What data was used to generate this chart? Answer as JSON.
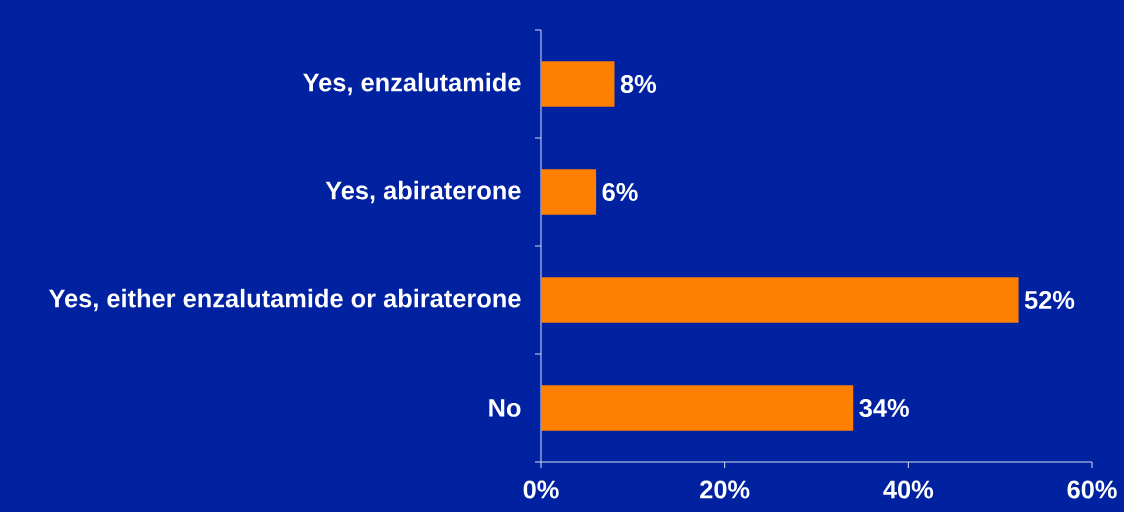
{
  "chart_data": {
    "type": "bar",
    "orientation": "horizontal",
    "categories": [
      "Yes, enzalutamide",
      "Yes, abiraterone",
      "Yes, either enzalutamide or abiraterone",
      "No"
    ],
    "values": [
      8,
      6,
      52,
      34
    ],
    "value_labels": [
      "8%",
      "6%",
      "52%",
      "34%"
    ],
    "color": "#ff8000",
    "xlim": [
      0,
      60
    ],
    "xticks": [
      {
        "value": 0,
        "label": "0%"
      },
      {
        "value": 20,
        "label": "20%"
      },
      {
        "value": 40,
        "label": "40%"
      },
      {
        "value": 60,
        "label": "60%"
      }
    ]
  }
}
